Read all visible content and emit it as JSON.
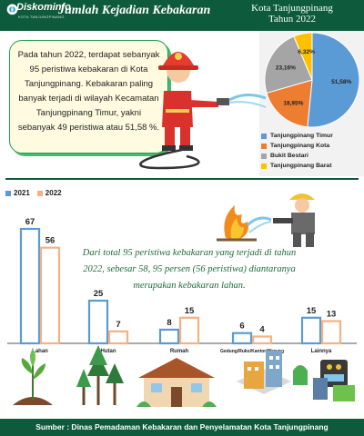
{
  "header": {
    "logo_text": "Diskominfo",
    "logo_sub": "KOTA TANJUNGPINANG",
    "title": "Jumlah Kejadian Kebakaran",
    "area_line1": "Kota Tanjungpinang",
    "area_line2": "Tahun 2022"
  },
  "intro": {
    "text": "Pada tahun 2022, terdapat sebanyak 95 peristiwa kebakaran di Kota Tanjungpinang. Kebakaran paling banyak terjadi di wilayah Kecamatan Tanjungpinang Timur, yakni sebanyak 49 peristiwa atau 51,58 %."
  },
  "bubble": {
    "text": "Dari total 95 peristiwa kebakaran yang terjadi di tahun 2022, sebesar 58, 95 persen  (56 peristiwa) diantaranya merupakan kebakaran lahan."
  },
  "footer": {
    "source": "Sumber : Dinas Pemadaman Kebakaran dan Penyelamatan Kota Tanjungpinang"
  },
  "colors": {
    "header_bg": "#0d5b3c",
    "accent_green": "#3fbf6e",
    "series_2021": "#5b9bd5",
    "series_2022": "#f4b183",
    "pie_timur": "#5b9bd5",
    "pie_kota": "#ed7d31",
    "pie_bukit": "#a5a5a5",
    "pie_barat": "#ffc000"
  },
  "chart_data": [
    {
      "type": "pie",
      "slices": [
        {
          "label": "Tanjungpinang Timur",
          "value": 51.58,
          "display": "51,58%"
        },
        {
          "label": "Tanjungpinang Kota",
          "value": 18.95,
          "display": "18,95%"
        },
        {
          "label": "Bukit Bestari",
          "value": 23.16,
          "display": "23,16%"
        },
        {
          "label": "Tanjungpinang Barat",
          "value": 6.32,
          "display": "6,32%"
        }
      ]
    },
    {
      "type": "bar",
      "categories": [
        "Lahan",
        "Hutan",
        "Rumah",
        "Gedung/Ruko/Kantor/Warung",
        "Lainnya"
      ],
      "series": [
        {
          "name": "2021",
          "values": [
            67,
            25,
            8,
            6,
            15
          ]
        },
        {
          "name": "2022",
          "values": [
            56,
            7,
            15,
            4,
            13
          ]
        }
      ]
    }
  ]
}
